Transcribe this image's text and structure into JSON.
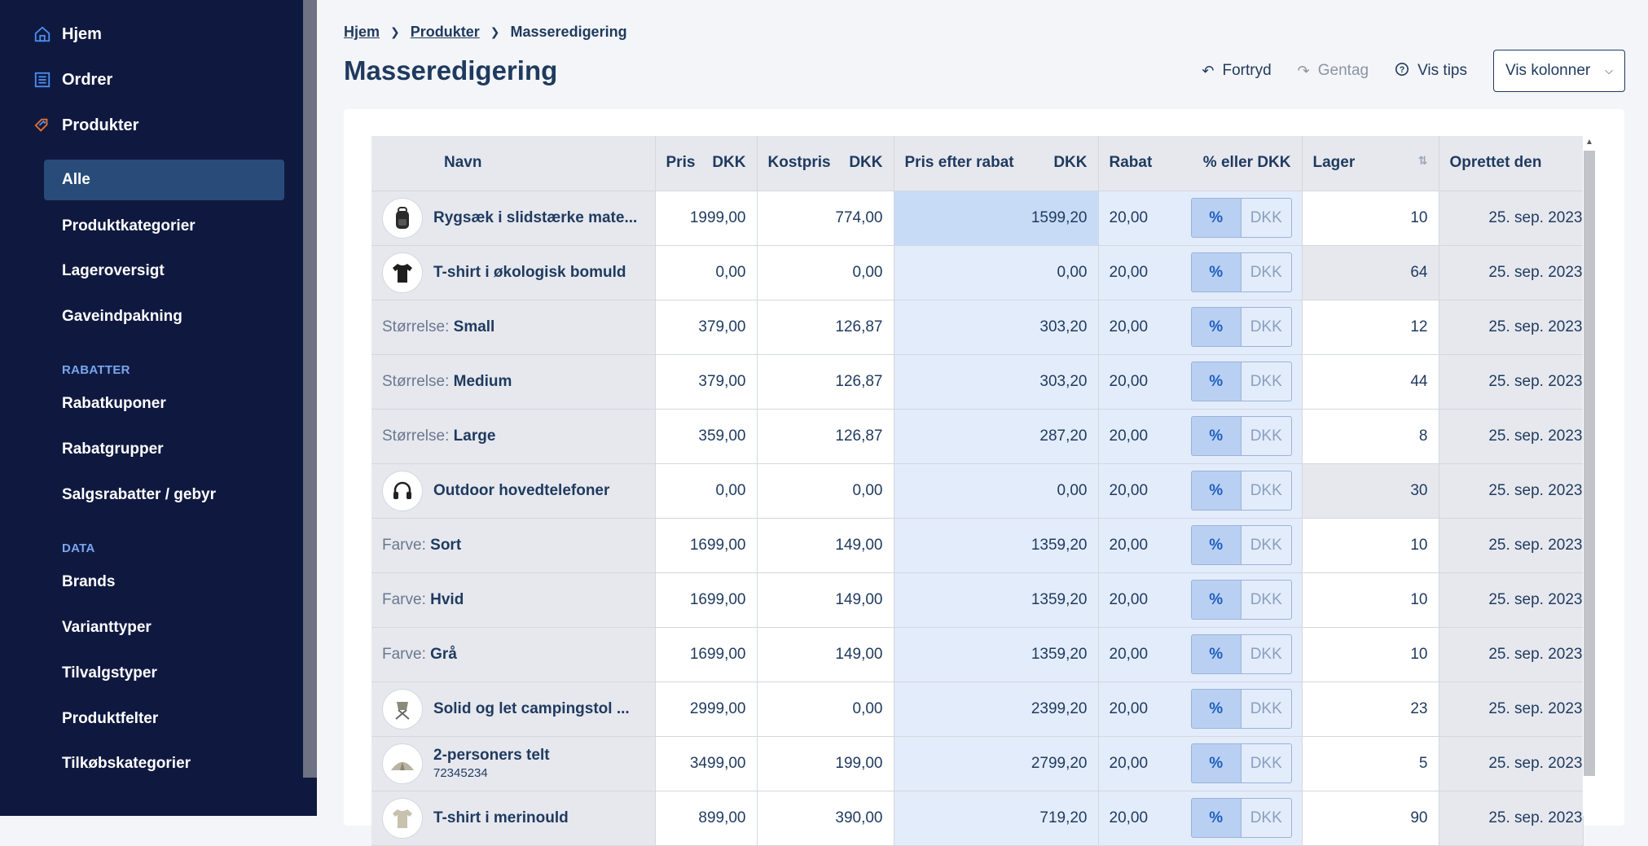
{
  "sidebar": {
    "main_items": [
      {
        "label": "Hjem",
        "icon": "home-icon"
      },
      {
        "label": "Ordrer",
        "icon": "orders-icon"
      },
      {
        "label": "Produkter",
        "icon": "tag-icon"
      }
    ],
    "sub_items": [
      "Alle",
      "Produktkategorier",
      "Lageroversigt",
      "Gaveindpakning"
    ],
    "active_item": "Alle",
    "section_rabatter": "RABATTER",
    "rabatter_items": [
      "Rabatkuponer",
      "Rabatgrupper",
      "Salgsrabatter / gebyr"
    ],
    "section_data": "DATA",
    "data_items": [
      "Brands",
      "Varianttyper",
      "Tilvalgstyper",
      "Produktfelter",
      "Tilkøbskategorier"
    ]
  },
  "breadcrumb": {
    "home": "Hjem",
    "products": "Produkter",
    "current": "Masseredigering"
  },
  "page_title": "Masseredigering",
  "toolbar": {
    "undo": "Fortryd",
    "redo": "Gentag",
    "tips": "Vis tips",
    "columns": "Vis kolonner"
  },
  "table": {
    "headers": {
      "name": "Navn",
      "price": "Pris",
      "price_unit": "DKK",
      "cost": "Kostpris",
      "cost_unit": "DKK",
      "discounted": "Pris efter rabat",
      "discounted_unit": "DKK",
      "discount": "Rabat",
      "discount_type": "% eller DKK",
      "stock": "Lager",
      "created": "Oprettet den"
    },
    "toggle": {
      "percent": "%",
      "dkk": "DKK"
    },
    "rows": [
      {
        "type": "product",
        "name": "Rygsæk i slidstærke mate...",
        "sku": "",
        "thumb": "backpack",
        "price": "1999,00",
        "cost": "774,00",
        "after": "1599,20",
        "discount": "20,00",
        "stock": "10",
        "stock_editable": true,
        "created": "25. sep. 2023"
      },
      {
        "type": "product",
        "name": "T-shirt i økologisk bomuld",
        "sku": "",
        "thumb": "tshirt",
        "price": "0,00",
        "cost": "0,00",
        "after": "0,00",
        "discount": "20,00",
        "stock": "64",
        "stock_editable": false,
        "created": "25. sep. 2023"
      },
      {
        "type": "variant",
        "label": "Størrelse",
        "value": "Small",
        "price": "379,00",
        "cost": "126,87",
        "after": "303,20",
        "discount": "20,00",
        "stock": "12",
        "stock_editable": true,
        "created": "25. sep. 2023"
      },
      {
        "type": "variant",
        "label": "Størrelse",
        "value": "Medium",
        "price": "379,00",
        "cost": "126,87",
        "after": "303,20",
        "discount": "20,00",
        "stock": "44",
        "stock_editable": true,
        "created": "25. sep. 2023"
      },
      {
        "type": "variant",
        "label": "Størrelse",
        "value": "Large",
        "price": "359,00",
        "cost": "126,87",
        "after": "287,20",
        "discount": "20,00",
        "stock": "8",
        "stock_editable": true,
        "created": "25. sep. 2023"
      },
      {
        "type": "product",
        "name": "Outdoor hovedtelefoner",
        "sku": "",
        "thumb": "headphones",
        "price": "0,00",
        "cost": "0,00",
        "after": "0,00",
        "discount": "20,00",
        "stock": "30",
        "stock_editable": false,
        "created": "25. sep. 2023"
      },
      {
        "type": "variant",
        "label": "Farve",
        "value": "Sort",
        "price": "1699,00",
        "cost": "149,00",
        "after": "1359,20",
        "discount": "20,00",
        "stock": "10",
        "stock_editable": true,
        "created": "25. sep. 2023"
      },
      {
        "type": "variant",
        "label": "Farve",
        "value": "Hvid",
        "price": "1699,00",
        "cost": "149,00",
        "after": "1359,20",
        "discount": "20,00",
        "stock": "10",
        "stock_editable": true,
        "created": "25. sep. 2023"
      },
      {
        "type": "variant",
        "label": "Farve",
        "value": "Grå",
        "price": "1699,00",
        "cost": "149,00",
        "after": "1359,20",
        "discount": "20,00",
        "stock": "10",
        "stock_editable": true,
        "created": "25. sep. 2023"
      },
      {
        "type": "product",
        "name": "Solid og let campingstol ...",
        "sku": "",
        "thumb": "chair",
        "price": "2999,00",
        "cost": "0,00",
        "after": "2399,20",
        "discount": "20,00",
        "stock": "23",
        "stock_editable": true,
        "created": "25. sep. 2023"
      },
      {
        "type": "product",
        "name": "2-personers telt",
        "sku": "72345234",
        "thumb": "tent",
        "price": "3499,00",
        "cost": "199,00",
        "after": "2799,20",
        "discount": "20,00",
        "stock": "5",
        "stock_editable": true,
        "created": "25. sep. 2023"
      },
      {
        "type": "product",
        "name": "T-shirt i merinould",
        "sku": "",
        "thumb": "tshirt2",
        "price": "899,00",
        "cost": "390,00",
        "after": "719,20",
        "discount": "20,00",
        "stock": "90",
        "stock_editable": true,
        "created": "25. sep. 2023"
      }
    ]
  }
}
